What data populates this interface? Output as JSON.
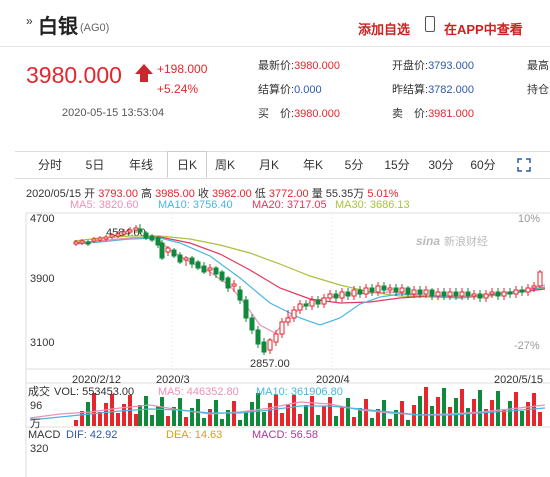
{
  "header": {
    "arrow": "»",
    "title": "白银",
    "code": "(AG0)",
    "add_fav": "添加自选",
    "view_app": "在APP中查看"
  },
  "quote": {
    "price": "3980.000",
    "change": "+198.000",
    "change_pct": "+5.24%",
    "time": "2020-05-15 13:53:04",
    "fields": {
      "latest_label": "最新价:",
      "latest": "3980.000",
      "open_label": "开盘价:",
      "open": "3793.000",
      "high_label": "最高",
      "settle_label": "结算价:",
      "settle": "0.000",
      "prev_settle_label": "昨结算:",
      "prev_settle": "3782.000",
      "hold_label": "持仓",
      "buy_label": "买　价:",
      "buy": "3980.000",
      "sell_label": "卖　价:",
      "sell": "3981.000"
    }
  },
  "tabs": [
    "分时",
    "5日",
    "年线",
    "日K",
    "周K",
    "月K",
    "年K",
    "5分",
    "15分",
    "30分",
    "60分"
  ],
  "active_tab": "日K",
  "kinfo": {
    "date": "2020/05/15",
    "open_label": "开",
    "open": "3793.00",
    "high_label": "高",
    "high": "3985.00",
    "close_label": "收",
    "close": "3982.00",
    "low_label": "低",
    "low": "3772.00",
    "vol_label": "量",
    "vol": "55.35万",
    "pct": "5.01%"
  },
  "ma": {
    "ma5": "MA5: 3820.60",
    "ma10": "MA10: 3756.40",
    "ma20": "MA20: 3717.05",
    "ma30": "MA30: 3686.13"
  },
  "colors": {
    "up": "#e4262d",
    "down": "#0f8a3c",
    "ma5": "#ef8fb7",
    "ma10": "#4ab6e0",
    "ma20": "#e2385c",
    "ma30": "#a7c23f"
  },
  "chart_data": {
    "type": "candlestick",
    "y_ticks": [
      "4700",
      "3900",
      "3100"
    ],
    "y_pct": [
      "10%",
      "-27%"
    ],
    "x_ticks": [
      "2020/2/12",
      "2020/3",
      "2020/4",
      "2020/5/15"
    ],
    "annot_high": "4584.00",
    "annot_low": "2857.00",
    "watermark": "新浪财经",
    "watermark_logo": "sina",
    "vol_info": "成交",
    "vol_text": "VOL: 553453.00",
    "vol_ma5": "MA5: 446352.80",
    "vol_ma10": "MA10: 361906.80",
    "vol_tick": "96",
    "vol_unit": "万",
    "macd_label": "MACD",
    "dif": "DIF: 42.92",
    "dea": "DEA: 14.63",
    "macd": "MACD: 56.58",
    "macd_tick": "320"
  }
}
